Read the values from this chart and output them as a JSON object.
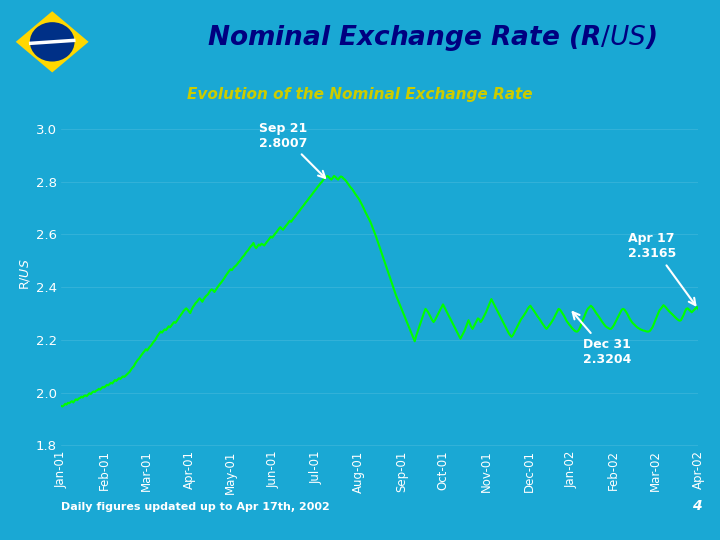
{
  "title": "Nominal Exchange Rate (R$/US$)",
  "subtitle": "Evolution of the Nominal Exchange Rate",
  "ylabel": "R$/US$",
  "footnote": "Daily figures updated up to Apr 17th, 2002",
  "page_number": "4",
  "bg_color_main": "#1aa8d4",
  "bg_color_header_top": "#c5dff0",
  "bg_color_header_bottom": "#1aa8d4",
  "line_color": "#00ff00",
  "title_color": "#000080",
  "subtitle_color": "#cccc00",
  "ylabel_color": "#ffffff",
  "tick_label_color": "#ffffff",
  "annotation_color": "#ffffff",
  "footer_text_color": "#ffffff",
  "ylim": [
    1.8,
    3.1
  ],
  "yticks": [
    1.8,
    2.0,
    2.2,
    2.4,
    2.6,
    2.8,
    3.0
  ],
  "dates": [
    "Jan-01",
    "Feb-01",
    "Mar-01",
    "Apr-01",
    "May-01",
    "Jun-01",
    "Jul-01",
    "Aug-01",
    "Sep-01",
    "Oct-01",
    "Nov-01",
    "Dec-01",
    "Jan-02",
    "Feb-02",
    "Mar-02",
    "Apr-02"
  ],
  "data_points": [
    1.95,
    1.948,
    1.952,
    1.958,
    1.955,
    1.962,
    1.96,
    1.965,
    1.968,
    1.963,
    1.97,
    1.975,
    1.972,
    1.978,
    1.98,
    1.985,
    1.982,
    1.988,
    1.99,
    1.987,
    1.993,
    1.998,
    1.995,
    2.001,
    2.005,
    2.003,
    2.008,
    2.01,
    2.015,
    2.012,
    2.018,
    2.022,
    2.02,
    2.025,
    2.03,
    2.028,
    2.033,
    2.038,
    2.035,
    2.042,
    2.048,
    2.045,
    2.05,
    2.055,
    2.052,
    2.058,
    2.062,
    2.06,
    2.065,
    2.07,
    2.075,
    2.08,
    2.088,
    2.095,
    2.1,
    2.11,
    2.118,
    2.125,
    2.13,
    2.138,
    2.145,
    2.152,
    2.158,
    2.165,
    2.16,
    2.168,
    2.175,
    2.18,
    2.188,
    2.195,
    2.2,
    2.21,
    2.218,
    2.225,
    2.232,
    2.228,
    2.235,
    2.24,
    2.238,
    2.245,
    2.252,
    2.248,
    2.255,
    2.262,
    2.268,
    2.265,
    2.272,
    2.28,
    2.288,
    2.295,
    2.302,
    2.31,
    2.315,
    2.32,
    2.315,
    2.308,
    2.302,
    2.315,
    2.325,
    2.332,
    2.34,
    2.345,
    2.352,
    2.358,
    2.352,
    2.345,
    2.355,
    2.362,
    2.368,
    2.372,
    2.38,
    2.388,
    2.392,
    2.388,
    2.382,
    2.39,
    2.398,
    2.405,
    2.412,
    2.418,
    2.425,
    2.432,
    2.44,
    2.448,
    2.455,
    2.462,
    2.468,
    2.465,
    2.472,
    2.478,
    2.482,
    2.488,
    2.495,
    2.5,
    2.508,
    2.515,
    2.52,
    2.528,
    2.535,
    2.54,
    2.548,
    2.555,
    2.56,
    2.568,
    2.555,
    2.548,
    2.555,
    2.562,
    2.558,
    2.565,
    2.562,
    2.558,
    2.565,
    2.572,
    2.578,
    2.585,
    2.592,
    2.588,
    2.595,
    2.602,
    2.608,
    2.615,
    2.622,
    2.628,
    2.622,
    2.618,
    2.625,
    2.632,
    2.638,
    2.645,
    2.652,
    2.648,
    2.655,
    2.662,
    2.668,
    2.675,
    2.682,
    2.688,
    2.695,
    2.702,
    2.708,
    2.715,
    2.722,
    2.728,
    2.735,
    2.742,
    2.748,
    2.755,
    2.762,
    2.768,
    2.775,
    2.782,
    2.788,
    2.795,
    2.8,
    2.808,
    2.812,
    2.818,
    2.822,
    2.818,
    2.812,
    2.808,
    2.815,
    2.822,
    2.818,
    2.812,
    2.808,
    2.815,
    2.82,
    2.818,
    2.812,
    2.808,
    2.802,
    2.795,
    2.788,
    2.78,
    2.775,
    2.768,
    2.76,
    2.752,
    2.745,
    2.738,
    2.73,
    2.72,
    2.71,
    2.7,
    2.688,
    2.678,
    2.668,
    2.658,
    2.648,
    2.635,
    2.622,
    2.608,
    2.595,
    2.58,
    2.565,
    2.55,
    2.535,
    2.52,
    2.505,
    2.49,
    2.475,
    2.46,
    2.445,
    2.43,
    2.415,
    2.4,
    2.385,
    2.37,
    2.358,
    2.345,
    2.332,
    2.32,
    2.308,
    2.295,
    2.282,
    2.27,
    2.258,
    2.245,
    2.232,
    2.22,
    2.208,
    2.195,
    2.215,
    2.23,
    2.245,
    2.26,
    2.275,
    2.29,
    2.305,
    2.318,
    2.312,
    2.305,
    2.295,
    2.285,
    2.275,
    2.268,
    2.275,
    2.285,
    2.295,
    2.305,
    2.315,
    2.325,
    2.335,
    2.325,
    2.315,
    2.305,
    2.295,
    2.285,
    2.275,
    2.265,
    2.255,
    2.245,
    2.235,
    2.225,
    2.215,
    2.205,
    2.215,
    2.225,
    2.235,
    2.248,
    2.262,
    2.275,
    2.262,
    2.25,
    2.242,
    2.252,
    2.262,
    2.272,
    2.282,
    2.278,
    2.268,
    2.275,
    2.285,
    2.295,
    2.305,
    2.318,
    2.33,
    2.342,
    2.355,
    2.345,
    2.335,
    2.325,
    2.315,
    2.305,
    2.295,
    2.285,
    2.275,
    2.265,
    2.255,
    2.245,
    2.235,
    2.225,
    2.218,
    2.212,
    2.218,
    2.228,
    2.238,
    2.248,
    2.258,
    2.268,
    2.278,
    2.285,
    2.292,
    2.3,
    2.308,
    2.318,
    2.325,
    2.33,
    2.322,
    2.315,
    2.308,
    2.3,
    2.292,
    2.285,
    2.278,
    2.27,
    2.262,
    2.255,
    2.248,
    2.242,
    2.248,
    2.255,
    2.262,
    2.27,
    2.278,
    2.288,
    2.298,
    2.308,
    2.318,
    2.315,
    2.308,
    2.3,
    2.292,
    2.282,
    2.272,
    2.265,
    2.258,
    2.252,
    2.245,
    2.24,
    2.235,
    2.232,
    2.232,
    2.238,
    2.248,
    2.262,
    2.275,
    2.288,
    2.3,
    2.312,
    2.32,
    2.325,
    2.33,
    2.325,
    2.318,
    2.31,
    2.302,
    2.295,
    2.288,
    2.28,
    2.272,
    2.265,
    2.258,
    2.252,
    2.248,
    2.245,
    2.242,
    2.242,
    2.248,
    2.255,
    2.265,
    2.275,
    2.285,
    2.295,
    2.305,
    2.315,
    2.318,
    2.315,
    2.308,
    2.3,
    2.29,
    2.28,
    2.272,
    2.265,
    2.26,
    2.255,
    2.25,
    2.246,
    2.243,
    2.24,
    2.238,
    2.236,
    2.235,
    2.233,
    2.232,
    2.232,
    2.235,
    2.242,
    2.25,
    2.262,
    2.275,
    2.288,
    2.3,
    2.312,
    2.318,
    2.325,
    2.332,
    2.328,
    2.322,
    2.316,
    2.31,
    2.305,
    2.3,
    2.295,
    2.29,
    2.285,
    2.28,
    2.276,
    2.273,
    2.275,
    2.285,
    2.295,
    2.308,
    2.318,
    2.32,
    2.315,
    2.31,
    2.305,
    2.31,
    2.315,
    2.32,
    2.325,
    2.3165
  ]
}
